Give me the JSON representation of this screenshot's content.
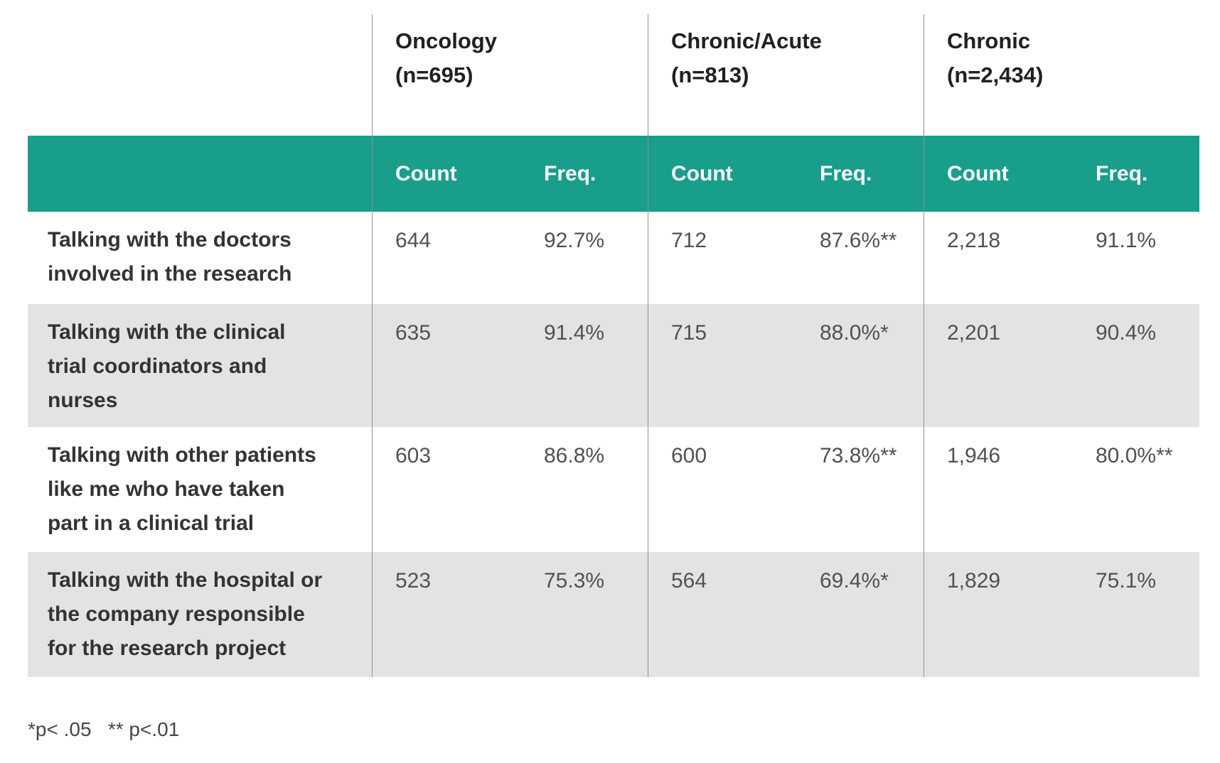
{
  "chart_data": {
    "type": "table",
    "column_groups": [
      {
        "label": "Oncology",
        "n_label": "(n=695)"
      },
      {
        "label": "Chronic/Acute",
        "n_label": "(n=813)"
      },
      {
        "label": "Chronic",
        "n_label": "(n=2,434)"
      }
    ],
    "sub_columns": [
      "Count",
      "Freq."
    ],
    "rows": [
      {
        "label": "Talking with the doctors\ninvolved in the research",
        "cells": [
          "644",
          "92.7%",
          "712",
          "87.6%**",
          "2,218",
          "91.1%"
        ]
      },
      {
        "label": "Talking with the clinical\ntrial coordinators and\nnurses",
        "cells": [
          "635",
          "91.4%",
          "715",
          "88.0%*",
          "2,201",
          "90.4%"
        ]
      },
      {
        "label": "Talking with other patients\nlike me who have taken\npart in a clinical trial",
        "cells": [
          "603",
          "86.8%",
          "600",
          "73.8%**",
          "1,946",
          "80.0%**"
        ]
      },
      {
        "label": "Talking with the hospital or\nthe company responsible\nfor the research project",
        "cells": [
          "523",
          "75.3%",
          "564",
          "69.4%*",
          "1,829",
          "75.1%"
        ]
      }
    ],
    "footnote": "*p< .05   ** p<.01",
    "layout": {
      "grid": "off",
      "legend": "none"
    }
  },
  "colors": {
    "header_teal": "#189E8B",
    "row_gray": "#E4E3E1",
    "divider_gray": "#909090",
    "label_text": "#333333",
    "value_text": "#515151"
  }
}
